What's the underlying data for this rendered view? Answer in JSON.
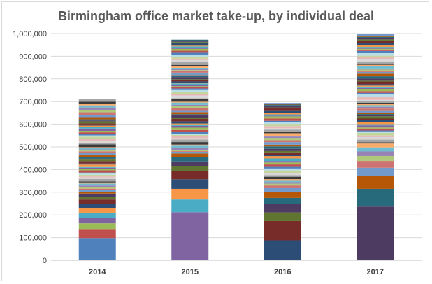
{
  "chart_data": {
    "type": "bar",
    "stacked": true,
    "title": "Birmingham office market take-up, by individual deal",
    "xlabel": "",
    "ylabel": "",
    "ylim": [
      0,
      1000000
    ],
    "ytick_step": 100000,
    "ytick_labels": [
      "0",
      "100,000",
      "200,000",
      "300,000",
      "400,000",
      "500,000",
      "600,000",
      "700,000",
      "800,000",
      "900,000",
      "1,000,000"
    ],
    "grid": true,
    "legend": "none",
    "categories": [
      "2014",
      "2015",
      "2016",
      "2017"
    ],
    "totals": [
      712000,
      973000,
      694000,
      1000000
    ],
    "major_deals": [
      [
        98000,
        37000,
        28000,
        25000,
        22000,
        20000,
        20000,
        18000
      ],
      [
        212000,
        56000,
        47000,
        42000,
        35000,
        24000,
        20000,
        18000,
        17000
      ],
      [
        88000,
        85000,
        38000,
        37000,
        27000,
        25000,
        18000
      ],
      [
        237000,
        78000,
        58000,
        35000,
        30000,
        22000,
        20000,
        18000,
        17000
      ]
    ],
    "palette": [
      "#4f81bd",
      "#c0504d",
      "#9bbb59",
      "#8064a2",
      "#4bacc6",
      "#f79646",
      "#2c4d75",
      "#772c2a",
      "#5f7530",
      "#4d3b62",
      "#276a7c",
      "#b65708",
      "#729aca",
      "#cd7371",
      "#afc97a",
      "#9983b5",
      "#6fbdd1",
      "#f9ab6b",
      "#3a3a3a",
      "#a5a5a5",
      "#d8d8d8",
      "#e6b9b8",
      "#c3d69b",
      "#b7dee8"
    ]
  }
}
